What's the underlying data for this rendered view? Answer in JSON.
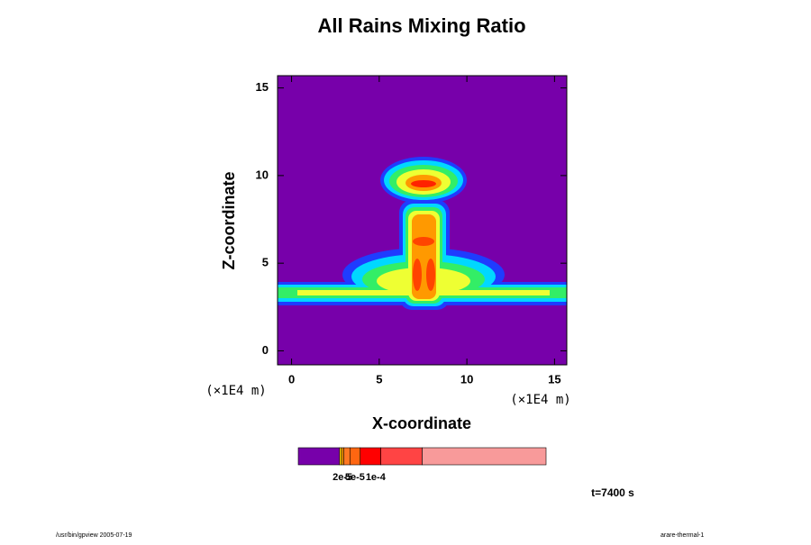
{
  "chart_data": {
    "type": "contour",
    "title": "All Rains Mixing Ratio",
    "xlabel": "X-coordinate",
    "ylabel": "Z-coordinate",
    "xunit": "(×1E4 m)",
    "yunit": "(×1E4 m)",
    "xlim": [
      -0.8,
      15.7
    ],
    "ylim": [
      -0.8,
      15.7
    ],
    "xticks": [
      0,
      5,
      10,
      15
    ],
    "yticks": [
      0,
      5,
      10,
      15
    ],
    "colorbar": {
      "lim": [
        0,
        0.0006
      ],
      "levels": [
        0,
        0.0001,
        0.000105,
        0.00011,
        0.000125,
        0.00015,
        0.0002,
        0.0003,
        0.0006
      ],
      "colors": [
        "#7700aa",
        "#ffcc00",
        "#ff9900",
        "#ff7722",
        "#ff6611",
        "#ff0000",
        "#ff4444",
        "#f89a9a"
      ],
      "ticks": [
        {
          "value": 2e-05,
          "label": "2e-5"
        },
        {
          "value": 5e-05,
          "label": "5e-5"
        },
        {
          "value": 0.0001,
          "label": "1e-4"
        }
      ]
    },
    "time": "t=7400 s",
    "footer_left": "/usr/bin/gpview 2005-07-19",
    "footer_right": "arare-thermal-1"
  }
}
